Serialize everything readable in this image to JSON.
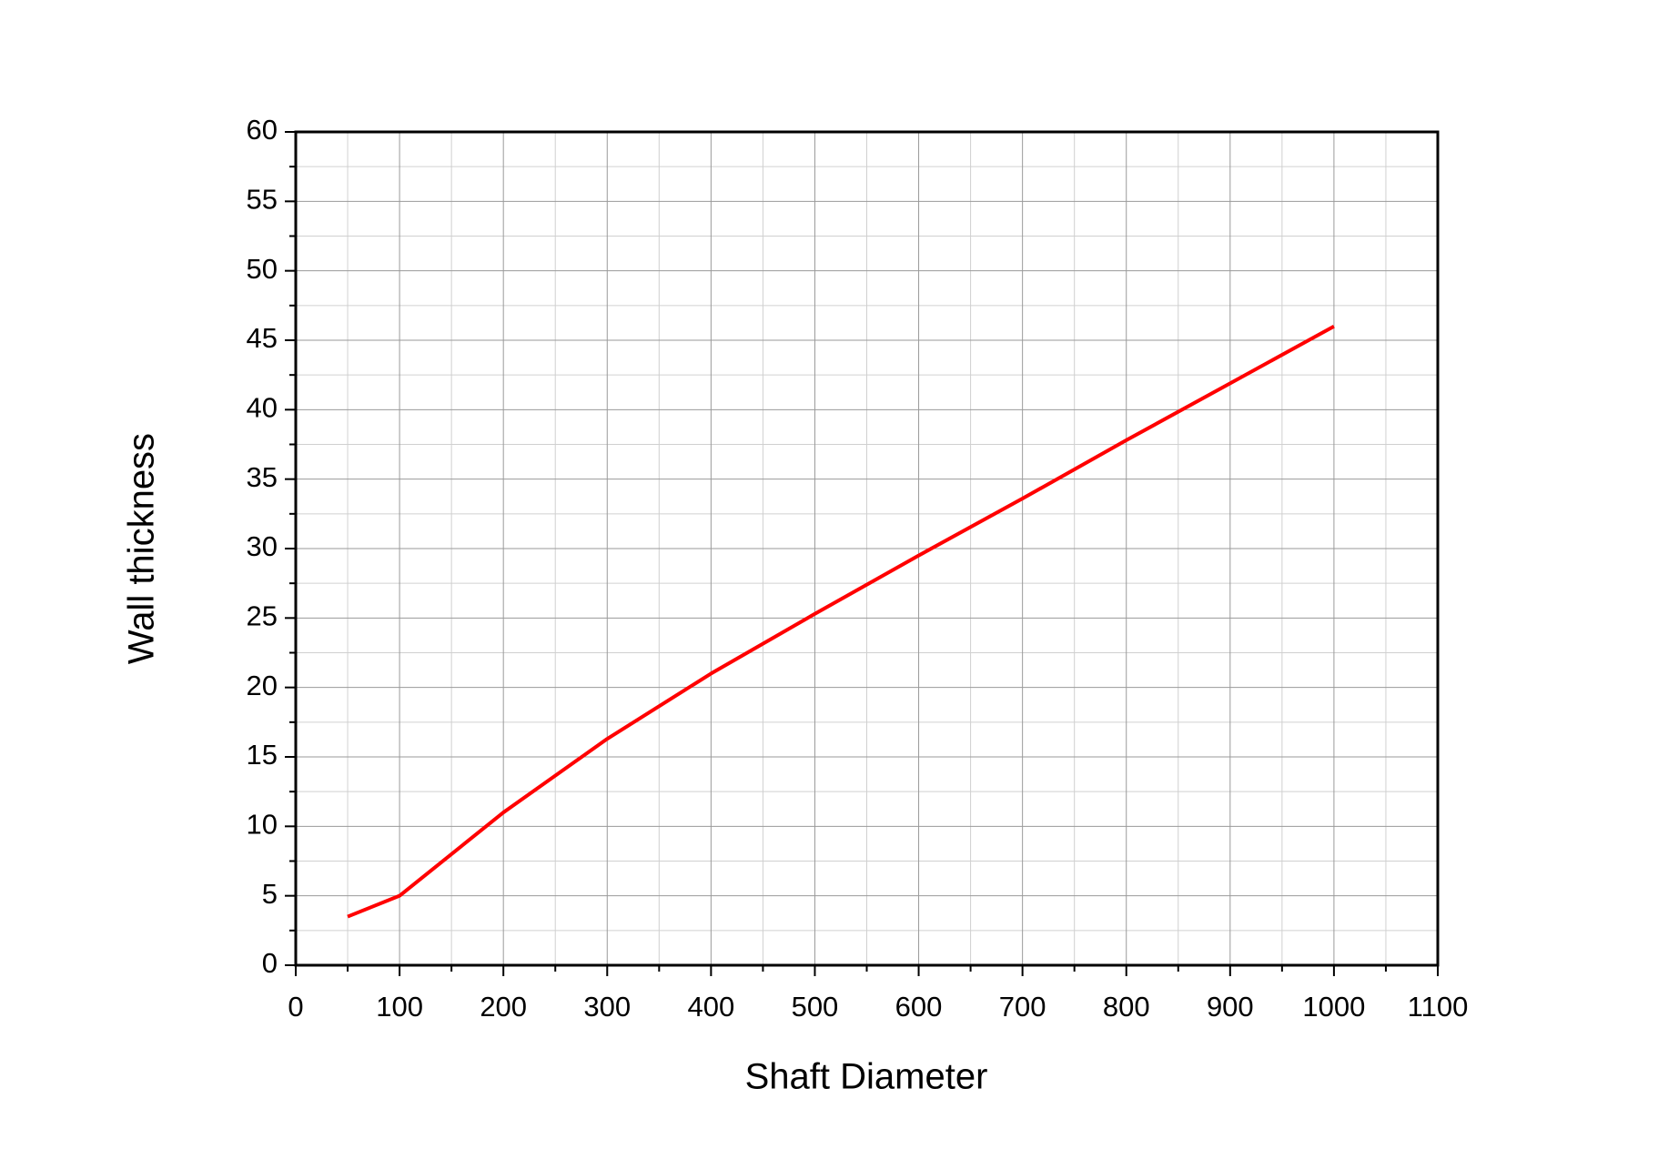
{
  "chart_data": {
    "type": "line",
    "xlabel": "Shaft Diameter",
    "ylabel": "Wall thickness",
    "x": [
      50,
      100,
      200,
      300,
      400,
      500,
      600,
      700,
      800,
      900,
      1000
    ],
    "series": [
      {
        "color": "#ff0000",
        "values": [
          3.5,
          5,
          11,
          16.3,
          21,
          25.3,
          29.5,
          33.6,
          37.8,
          41.9,
          46
        ]
      }
    ],
    "xlim": [
      0,
      1100
    ],
    "xticks": [
      0,
      100,
      200,
      300,
      400,
      500,
      600,
      700,
      800,
      900,
      1000,
      1100
    ],
    "ylim": [
      0,
      60
    ],
    "yticks": [
      0,
      5,
      10,
      15,
      20,
      25,
      30,
      35,
      40,
      45,
      50,
      55,
      60
    ],
    "grid": true
  }
}
